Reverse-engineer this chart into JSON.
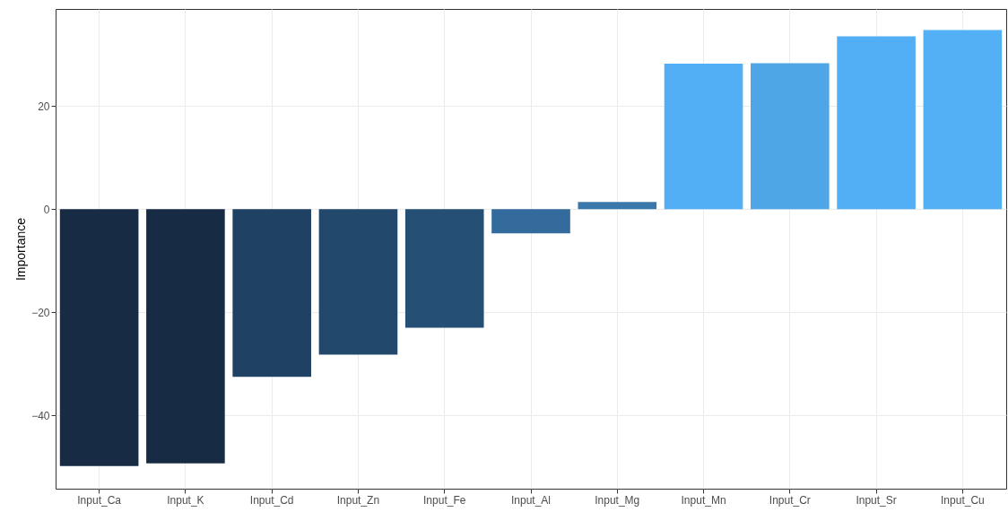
{
  "chart_data": {
    "type": "bar",
    "ylabel": "Importance",
    "categories": [
      "Input_Ca",
      "Input_K",
      "Input_Cd",
      "Input_Zn",
      "Input_Fe",
      "Input_Al",
      "Input_Mg",
      "Input_Mn",
      "Input_Cr",
      "Input_Sr",
      "Input_Cu"
    ],
    "values": [
      -49.8,
      -49.3,
      -32.5,
      -28.2,
      -23.0,
      -4.7,
      1.4,
      28.2,
      28.3,
      33.5,
      34.7
    ],
    "colors": [
      "#172c44",
      "#172c44",
      "#1f4163",
      "#22486b",
      "#254f75",
      "#336b9c",
      "#3a77ab",
      "#53aff5",
      "#4fa6e6",
      "#53aff5",
      "#54b0f5"
    ],
    "ylim": [
      -54.2,
      38.8
    ],
    "yticks": [
      -40,
      -20,
      0,
      20
    ],
    "grid": true
  }
}
